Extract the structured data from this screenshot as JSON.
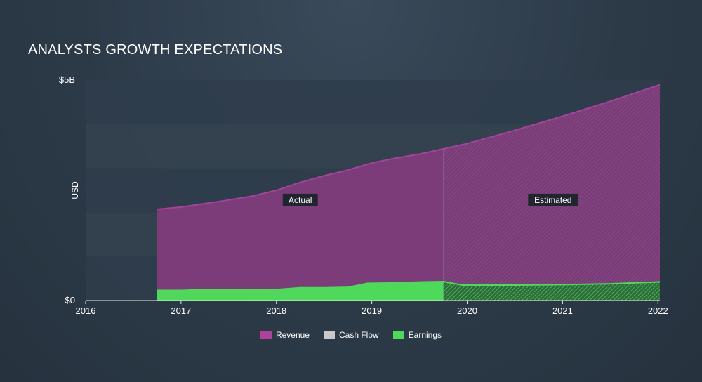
{
  "title": "ANALYSTS GROWTH EXPECTATIONS",
  "chart_data": {
    "type": "area",
    "title": "ANALYSTS GROWTH EXPECTATIONS",
    "ylabel": "USD",
    "xlabel": "",
    "ylim": [
      0,
      5.0
    ],
    "xlim": [
      2016,
      2022.02
    ],
    "y_ticks": [
      {
        "value": 0,
        "label": "$0"
      },
      {
        "value": 5,
        "label": "$5B"
      }
    ],
    "x_ticks": [
      {
        "value": 2016,
        "label": "2016"
      },
      {
        "value": 2017,
        "label": "2017"
      },
      {
        "value": 2018,
        "label": "2018"
      },
      {
        "value": 2019,
        "label": "2019"
      },
      {
        "value": 2020,
        "label": "2020"
      },
      {
        "value": 2021,
        "label": "2021"
      },
      {
        "value": 2022,
        "label": "2022"
      }
    ],
    "actual_end": 2019.75,
    "annotations": [
      {
        "text": "Actual",
        "x": 2018.25,
        "y": 2.28
      },
      {
        "text": "Estimated",
        "x": 2020.9,
        "y": 2.28
      }
    ],
    "series": [
      {
        "name": "Revenue",
        "color": "#b0409a",
        "points": [
          [
            2016.75,
            2.07
          ],
          [
            2017.0,
            2.12
          ],
          [
            2017.25,
            2.2
          ],
          [
            2017.5,
            2.28
          ],
          [
            2017.75,
            2.37
          ],
          [
            2018.0,
            2.5
          ],
          [
            2018.25,
            2.68
          ],
          [
            2018.5,
            2.83
          ],
          [
            2018.75,
            2.96
          ],
          [
            2019.0,
            3.12
          ],
          [
            2019.25,
            3.23
          ],
          [
            2019.5,
            3.32
          ],
          [
            2019.75,
            3.44
          ],
          [
            2020.0,
            3.56
          ],
          [
            2020.5,
            3.86
          ],
          [
            2021.0,
            4.18
          ],
          [
            2021.5,
            4.52
          ],
          [
            2022.0,
            4.88
          ],
          [
            2022.02,
            4.9
          ]
        ]
      },
      {
        "name": "Cash Flow",
        "color": "#c8c8c8",
        "points": []
      },
      {
        "name": "Earnings",
        "color": "#4fd95a",
        "points": [
          [
            2016.75,
            0.23
          ],
          [
            2017.0,
            0.23
          ],
          [
            2017.25,
            0.25
          ],
          [
            2017.5,
            0.25
          ],
          [
            2017.75,
            0.24
          ],
          [
            2018.0,
            0.25
          ],
          [
            2018.25,
            0.29
          ],
          [
            2018.5,
            0.29
          ],
          [
            2018.75,
            0.3
          ],
          [
            2018.95,
            0.39
          ],
          [
            2019.25,
            0.4
          ],
          [
            2019.5,
            0.42
          ],
          [
            2019.75,
            0.43
          ],
          [
            2019.95,
            0.35
          ],
          [
            2020.5,
            0.35
          ],
          [
            2021.0,
            0.36
          ],
          [
            2021.5,
            0.38
          ],
          [
            2022.0,
            0.42
          ],
          [
            2022.02,
            0.43
          ]
        ]
      }
    ],
    "legend_position": "bottom-center"
  },
  "legend": [
    {
      "label": "Revenue",
      "color": "#b0409a"
    },
    {
      "label": "Cash Flow",
      "color": "#c8c8c8"
    },
    {
      "label": "Earnings",
      "color": "#4fd95a"
    }
  ]
}
